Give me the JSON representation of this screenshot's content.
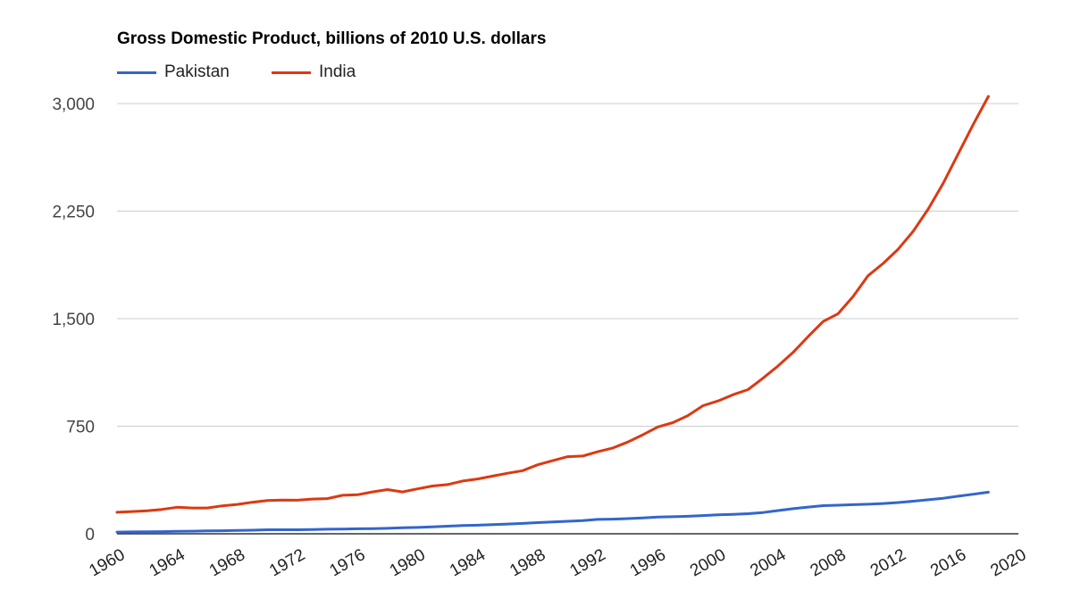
{
  "chart_data": {
    "type": "line",
    "title": "Gross Domestic Product, billions of 2010 U.S. dollars",
    "xlabel": "",
    "ylabel": "",
    "xlim": [
      1960,
      2020
    ],
    "ylim": [
      0,
      3000
    ],
    "x_ticks": [
      1960,
      1964,
      1968,
      1972,
      1976,
      1980,
      1984,
      1988,
      1992,
      1996,
      2000,
      2004,
      2008,
      2012,
      2016,
      2020
    ],
    "y_ticks": [
      0,
      750,
      1500,
      2250,
      3000
    ],
    "y_tick_labels": [
      "0",
      "750",
      "1,500",
      "2,250",
      "3,000"
    ],
    "grid": true,
    "legend_position": "top-left",
    "x": [
      1960,
      1961,
      1962,
      1963,
      1964,
      1965,
      1966,
      1967,
      1968,
      1969,
      1970,
      1971,
      1972,
      1973,
      1974,
      1975,
      1976,
      1977,
      1978,
      1979,
      1980,
      1981,
      1982,
      1983,
      1984,
      1985,
      1986,
      1987,
      1988,
      1989,
      1990,
      1991,
      1992,
      1993,
      1994,
      1995,
      1996,
      1997,
      1998,
      1999,
      2000,
      2001,
      2002,
      2003,
      2004,
      2005,
      2006,
      2007,
      2008,
      2009,
      2010,
      2011,
      2012,
      2013,
      2014,
      2015,
      2016,
      2017,
      2018
    ],
    "series": [
      {
        "name": "Pakistan",
        "color": "#3366cc",
        "values": [
          12,
          13,
          14,
          15,
          17,
          18,
          20,
          21,
          23,
          25,
          28,
          28,
          28,
          30,
          32,
          33,
          35,
          36,
          38,
          42,
          44,
          48,
          53,
          57,
          60,
          64,
          68,
          72,
          78,
          83,
          87,
          92,
          100,
          102,
          106,
          111,
          117,
          119,
          122,
          127,
          132,
          135,
          140,
          148,
          162,
          175,
          186,
          196,
          199,
          203,
          206,
          211,
          218,
          227,
          237,
          248,
          262,
          276,
          290
        ]
      },
      {
        "name": "India",
        "color": "#dc3912",
        "values": [
          150,
          155,
          160,
          170,
          185,
          180,
          180,
          195,
          205,
          220,
          232,
          235,
          234,
          242,
          245,
          268,
          272,
          292,
          308,
          292,
          313,
          333,
          343,
          368,
          382,
          402,
          422,
          440,
          481,
          510,
          538,
          542,
          572,
          598,
          640,
          690,
          745,
          775,
          824,
          893,
          926,
          970,
          1005,
          1085,
          1170,
          1265,
          1375,
          1480,
          1535,
          1655,
          1800,
          1885,
          1985,
          2110,
          2265,
          2445,
          2650,
          2855,
          3050
        ]
      }
    ]
  }
}
